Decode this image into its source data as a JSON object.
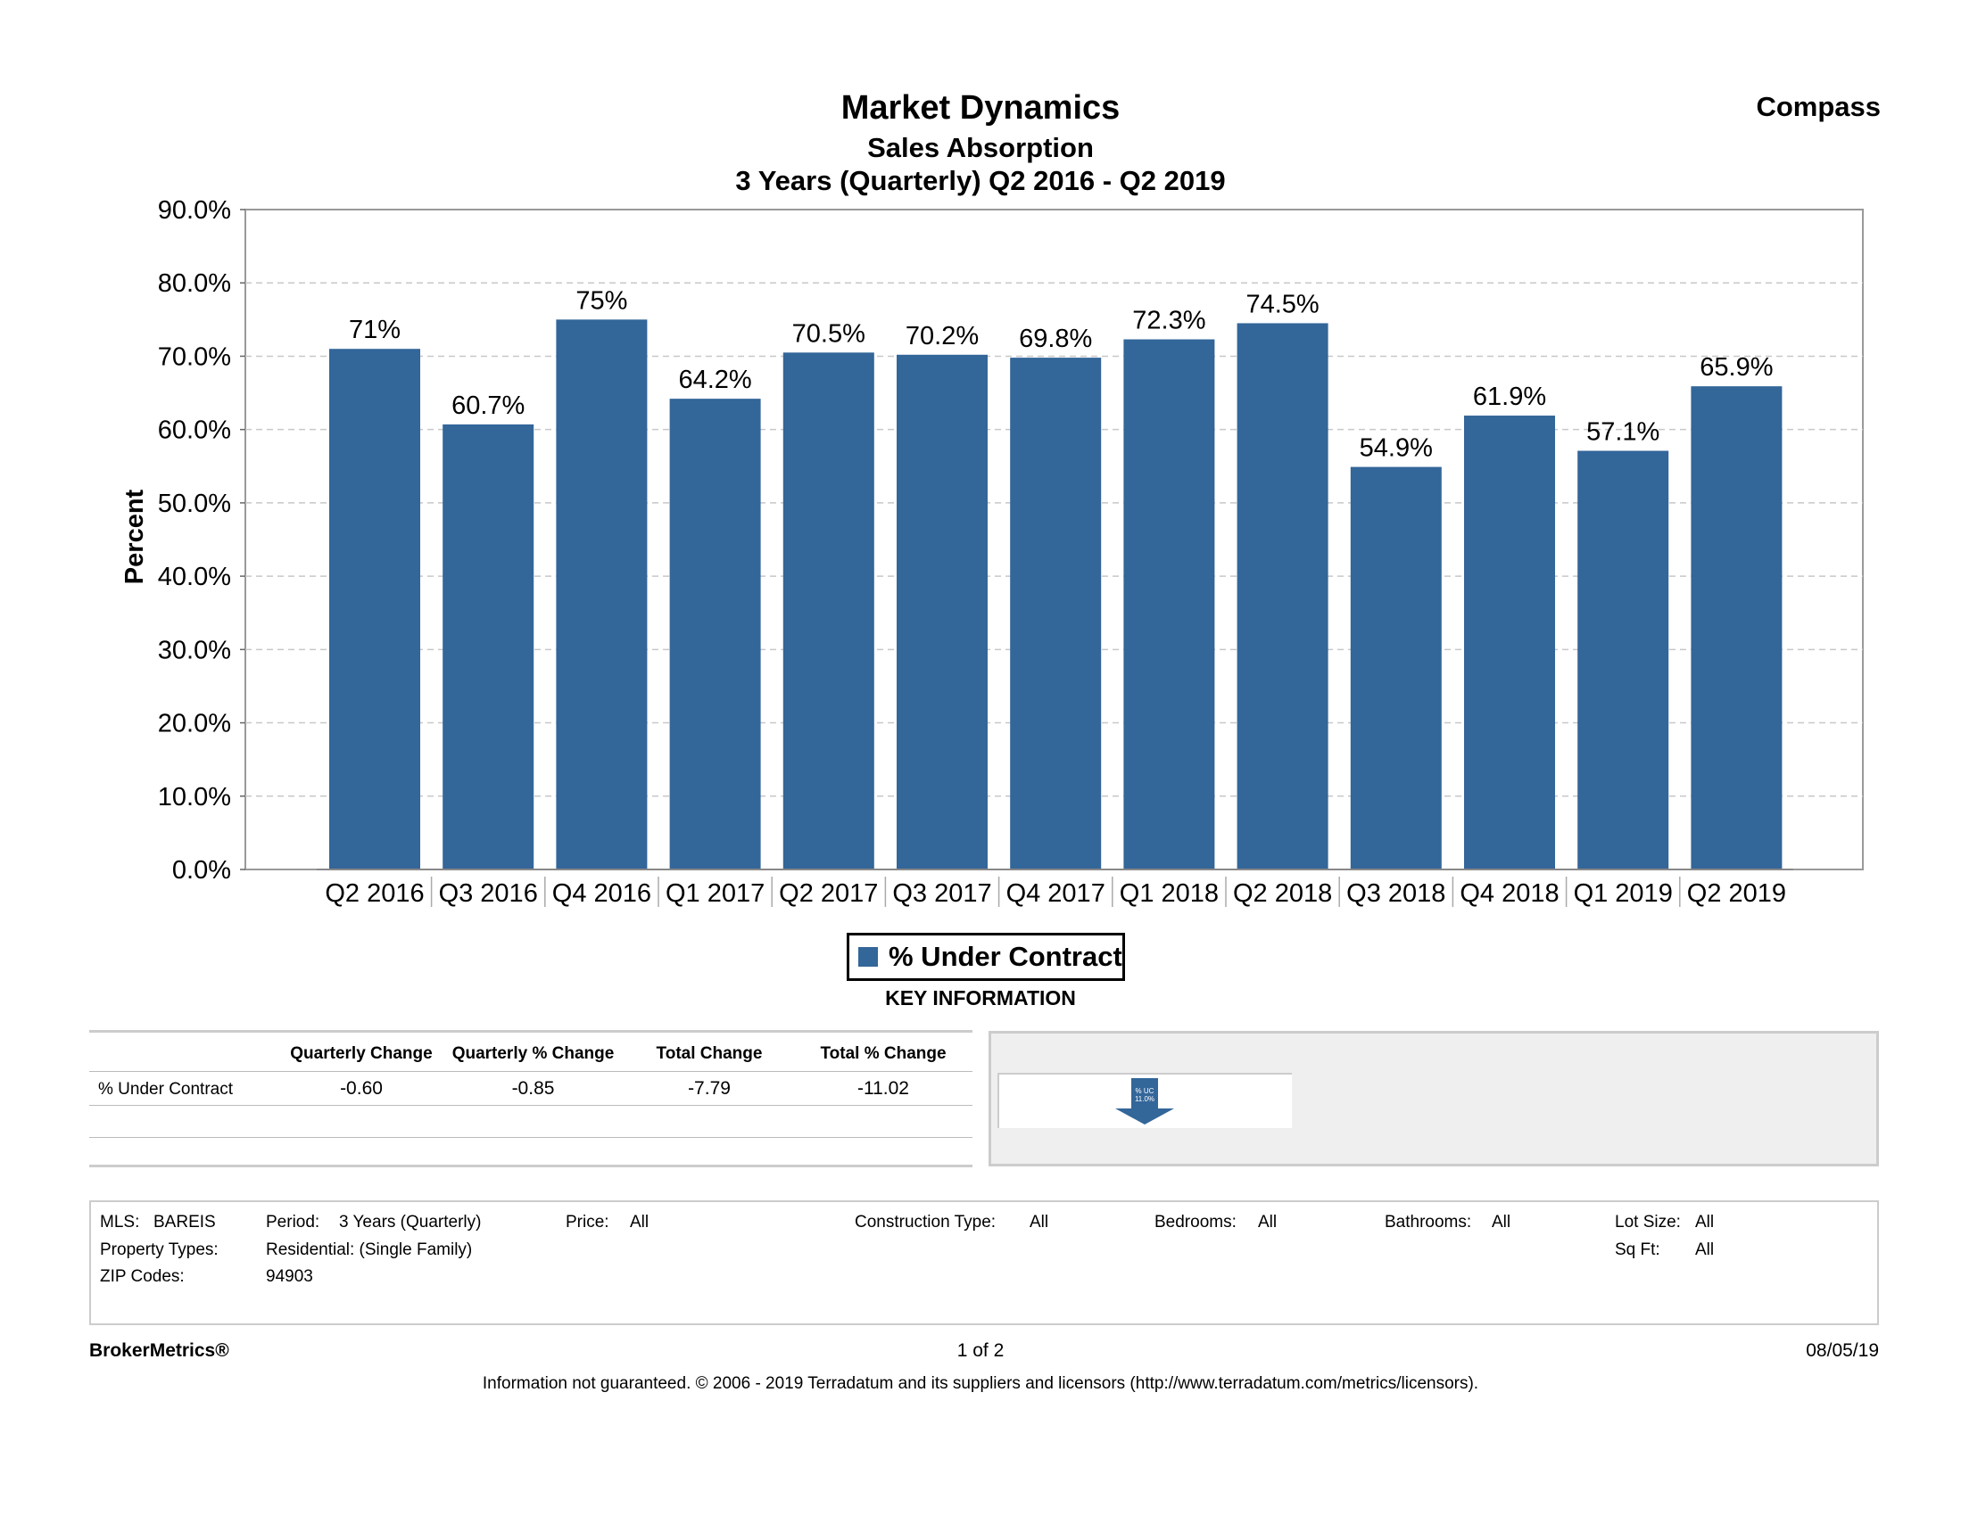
{
  "header": {
    "title": "Market Dynamics",
    "subtitle": "Sales Absorption",
    "period": "3 Years (Quarterly) Q2 2016 - Q2 2019",
    "brand": "Compass"
  },
  "chart_data": {
    "type": "bar",
    "title": "Market Dynamics",
    "subtitle": "Sales Absorption",
    "xlabel": "",
    "ylabel": "Percent",
    "ylim": [
      0,
      90
    ],
    "yticks": [
      "0.0%",
      "10.0%",
      "20.0%",
      "30.0%",
      "40.0%",
      "50.0%",
      "60.0%",
      "70.0%",
      "80.0%",
      "90.0%"
    ],
    "grid": true,
    "categories": [
      "Q2 2016",
      "Q3 2016",
      "Q4 2016",
      "Q1 2017",
      "Q2 2017",
      "Q3 2017",
      "Q4 2017",
      "Q1 2018",
      "Q2 2018",
      "Q3 2018",
      "Q4 2018",
      "Q1 2019",
      "Q2 2019"
    ],
    "series": [
      {
        "name": "% Under Contract",
        "color": "#336699",
        "values": [
          71,
          60.7,
          75,
          64.2,
          70.5,
          70.2,
          69.8,
          72.3,
          74.5,
          54.9,
          61.9,
          57.1,
          65.9
        ],
        "labels": [
          "71%",
          "60.7%",
          "75%",
          "64.2%",
          "70.5%",
          "70.2%",
          "69.8%",
          "72.3%",
          "74.5%",
          "54.9%",
          "61.9%",
          "57.1%",
          "65.9%"
        ]
      }
    ]
  },
  "legend": {
    "label": "% Under Contract",
    "color": "#336699"
  },
  "key_information": {
    "title": "KEY INFORMATION",
    "headers": [
      "Quarterly Change",
      "Quarterly % Change",
      "Total Change",
      "Total % Change"
    ],
    "rows": [
      {
        "label": "% Under Contract",
        "values": [
          "-0.60",
          "-0.85",
          "-7.79",
          "-11.02"
        ]
      }
    ],
    "indicator": {
      "line1": "% UC",
      "line2": "11.0%",
      "direction": "down"
    }
  },
  "params": {
    "mls_label": "MLS:",
    "mls_value": "BAREIS",
    "period_label": "Period:",
    "period_value": "3 Years (Quarterly)",
    "price_label": "Price:",
    "price_value": "All",
    "construction_label": "Construction Type:",
    "construction_value": "All",
    "bedrooms_label": "Bedrooms:",
    "bedrooms_value": "All",
    "bathrooms_label": "Bathrooms:",
    "bathrooms_value": "All",
    "lotsize_label": "Lot Size:",
    "lotsize_value": "All",
    "proptypes_label": "Property Types:",
    "proptypes_value": "Residential: (Single Family)",
    "sqft_label": "Sq Ft:",
    "sqft_value": "All",
    "zip_label": "ZIP Codes:",
    "zip_value": "94903"
  },
  "footer": {
    "left": "BrokerMetrics®",
    "page": "1 of 2",
    "date": "08/05/19",
    "disclaimer": "Information not guaranteed.  © 2006 - 2019 Terradatum and its suppliers and licensors (http://www.terradatum.com/metrics/licensors)."
  }
}
